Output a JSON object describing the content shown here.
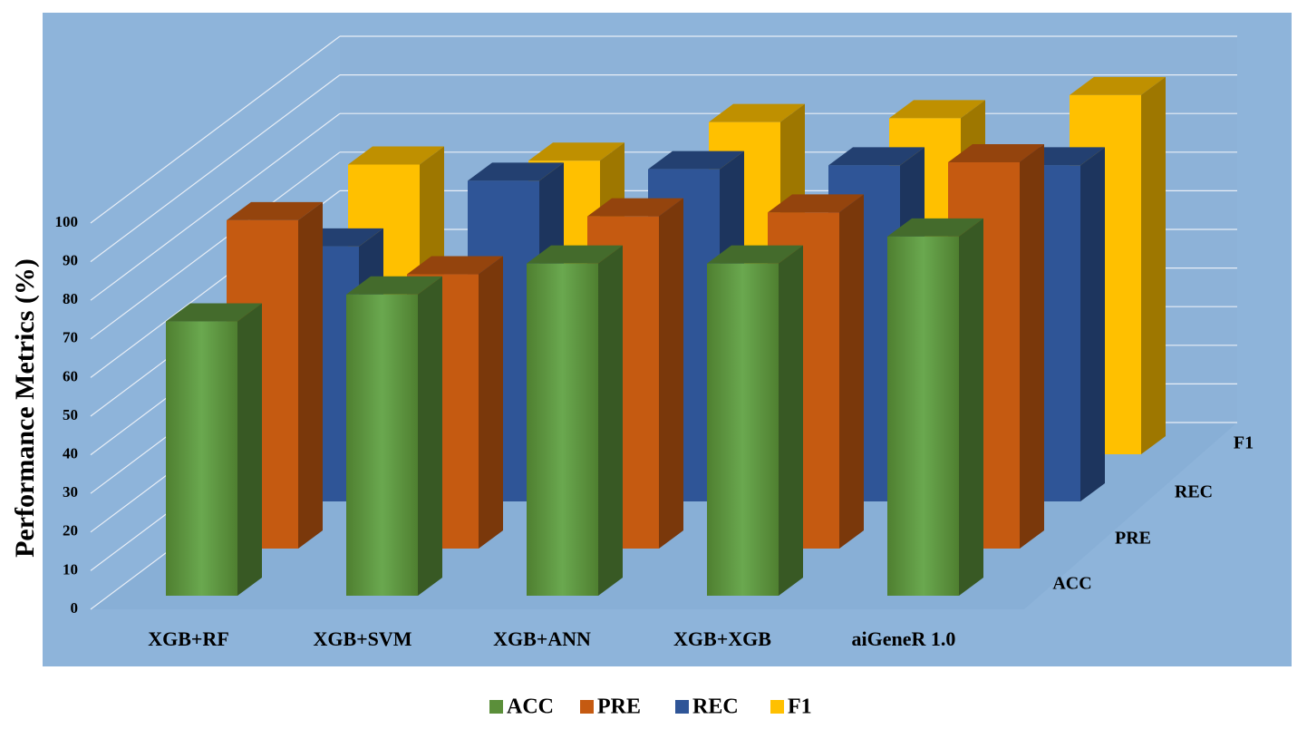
{
  "chart_data": {
    "type": "bar3d",
    "y_label": "Performance Metrics (%)",
    "categories": [
      "XGB+RF",
      "XGB+SVM",
      "XGB+ANN",
      "XGB+XGB",
      "aiGeneR 1.0"
    ],
    "series": [
      {
        "name": "ACC",
        "color": "#5b8f3a",
        "values": [
          71,
          78,
          86,
          86,
          93
        ]
      },
      {
        "name": "PRE",
        "color": "#c55a11",
        "values": [
          85,
          71,
          86,
          87,
          100
        ]
      },
      {
        "name": "REC",
        "color": "#2f5597",
        "values": [
          66,
          83,
          86,
          87,
          87
        ]
      },
      {
        "name": "F1",
        "color": "#ffc000",
        "values": [
          75,
          76,
          86,
          87,
          93
        ]
      }
    ],
    "ylim": [
      0,
      100
    ],
    "yticks": [
      0,
      10,
      20,
      30,
      40,
      50,
      60,
      70,
      80,
      90,
      100
    ],
    "grid": true,
    "legend": "bottom"
  }
}
